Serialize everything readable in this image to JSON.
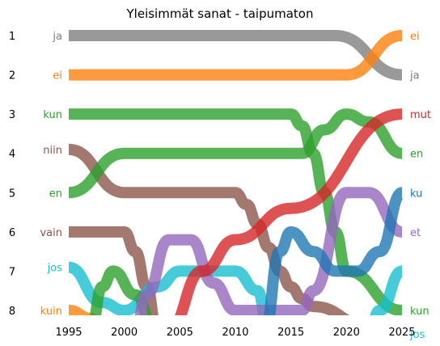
{
  "chart_data": {
    "type": "line",
    "subtype": "bump",
    "title": "Yleisimmät sanat - taipumaton",
    "xlabel": "",
    "ylabel": "",
    "xlim": [
      1994.5,
      2025.5
    ],
    "ylim": [
      1,
      8
    ],
    "y_inverted": true,
    "x_ticks": [
      1995,
      2000,
      2005,
      2010,
      2015,
      2020,
      2025
    ],
    "y_ticks": [
      1,
      2,
      3,
      4,
      5,
      6,
      7,
      8
    ],
    "grid": false,
    "series": [
      {
        "name": "ja",
        "color": "#7f7f7f",
        "left_label": "ja",
        "right_label": "ja",
        "points": [
          [
            1995,
            1
          ],
          [
            2019,
            1
          ],
          [
            2025,
            2
          ]
        ]
      },
      {
        "name": "ei",
        "color": "#ff7f0e",
        "left_label": "ei",
        "right_label": "ei",
        "points": [
          [
            1995,
            2
          ],
          [
            2020,
            2
          ],
          [
            2025,
            1
          ]
        ]
      },
      {
        "name": "kun",
        "color": "#2ca02c",
        "left_label": "kun",
        "right_label": "kun",
        "points": [
          [
            1995,
            3
          ],
          [
            2015,
            3
          ],
          [
            2016,
            3.3
          ],
          [
            2017,
            4
          ],
          [
            2018,
            5
          ],
          [
            2019,
            6
          ],
          [
            2020,
            7
          ],
          [
            2025,
            8
          ]
        ]
      },
      {
        "name": "niin",
        "color": "#8c564b",
        "left_label": "niin",
        "right_label": "",
        "points": [
          [
            1995,
            3.9
          ],
          [
            2000,
            5
          ],
          [
            2010,
            5
          ],
          [
            2011,
            5.3
          ],
          [
            2012,
            5.8
          ],
          [
            2013,
            6.4
          ],
          [
            2014,
            7
          ],
          [
            2015,
            7.4
          ],
          [
            2016,
            7.7
          ],
          [
            2017,
            7.9
          ],
          [
            2022,
            8.4
          ]
        ]
      },
      {
        "name": "en",
        "color": "#2ca02c",
        "left_label": "en",
        "right_label": "en",
        "points": [
          [
            1995,
            5
          ],
          [
            2000,
            4
          ],
          [
            2016,
            4
          ],
          [
            2018,
            3.4
          ],
          [
            2020,
            3
          ],
          [
            2022,
            3.2
          ],
          [
            2025,
            4
          ]
        ]
      },
      {
        "name": "vain",
        "color": "#8c564b",
        "left_label": "vain",
        "right_label": "",
        "points": [
          [
            1995,
            6
          ],
          [
            2000,
            6
          ],
          [
            2001,
            6.5
          ],
          [
            2002,
            7.4
          ],
          [
            2003,
            8.6
          ]
        ]
      },
      {
        "name": "jos",
        "color": "#17becf",
        "left_label": "jos",
        "right_label": "jos",
        "points": [
          [
            1995,
            6.9
          ],
          [
            1998,
            7.8
          ],
          [
            2000,
            8
          ],
          [
            2003,
            7.4
          ],
          [
            2005,
            7
          ],
          [
            2010,
            7
          ],
          [
            2012,
            7.5
          ],
          [
            2013,
            8.6
          ]
        ]
      },
      {
        "name": "kuin",
        "color": "#ff7f0e",
        "left_label": "kuin",
        "right_label": "",
        "points": [
          [
            1995,
            8
          ],
          [
            1997,
            8.2
          ],
          [
            1998,
            8.6
          ]
        ]
      },
      {
        "name": "kun (2)",
        "color": "#2ca02c",
        "left_label": "",
        "right_label": "",
        "points": [
          [
            1997,
            8.5
          ],
          [
            1998,
            7.4
          ],
          [
            1999,
            7
          ],
          [
            2001,
            7.6
          ],
          [
            2003,
            8.8
          ]
        ]
      },
      {
        "name": "et",
        "color": "#9467bd",
        "left_label": "",
        "right_label": "et",
        "points": [
          [
            2001,
            8.5
          ],
          [
            2002,
            7.6
          ],
          [
            2004,
            6.2
          ],
          [
            2006,
            6.2
          ],
          [
            2008,
            7.3
          ],
          [
            2010,
            8
          ],
          [
            2016,
            8
          ],
          [
            2017,
            7.5
          ],
          [
            2020,
            5
          ],
          [
            2022,
            5
          ],
          [
            2025,
            6
          ]
        ]
      },
      {
        "name": "mut",
        "color": "#d62728",
        "left_label": "",
        "right_label": "mut",
        "points": [
          [
            2004,
            8.5
          ],
          [
            2007,
            7
          ],
          [
            2010,
            6.2
          ],
          [
            2015,
            5.4
          ],
          [
            2025,
            3
          ]
        ]
      },
      {
        "name": "ku",
        "color": "#1f77b4",
        "left_label": "",
        "right_label": "ku",
        "points": [
          [
            2012.6,
            8.6
          ],
          [
            2014,
            6.5
          ],
          [
            2015,
            6
          ],
          [
            2017,
            6.5
          ],
          [
            2019,
            7
          ],
          [
            2021,
            7
          ],
          [
            2023,
            6.5
          ],
          [
            2025,
            5
          ]
        ]
      },
      {
        "name": "jos (2)",
        "color": "#17becf",
        "left_label": "",
        "right_label": "",
        "points": [
          [
            2022,
            8.5
          ],
          [
            2023,
            8
          ],
          [
            2025,
            7
          ]
        ]
      }
    ]
  }
}
